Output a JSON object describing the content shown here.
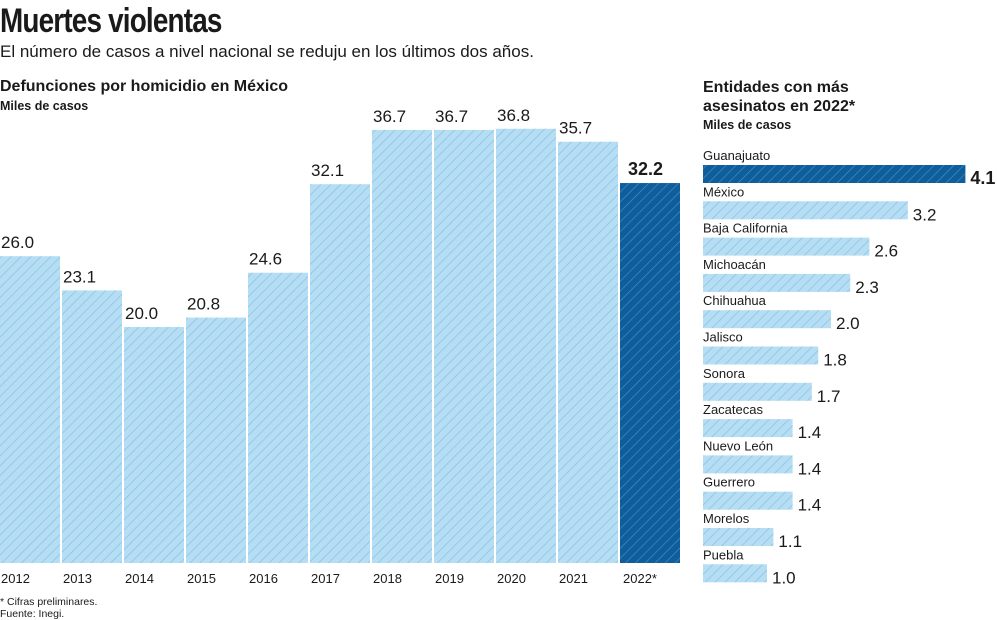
{
  "title": "Muertes violentas",
  "subtitle": "El número de casos a nivel nacional se reduju en los últimos dos años.",
  "footnote": "* Cifras preliminares.",
  "source": "Fuente: Inegi.",
  "colors": {
    "light": "#b5ddf3",
    "light_stripe": "#86bfe0",
    "highlight": "#0f5e9c",
    "highlight_stripe": "#4a8cc4"
  },
  "chart_data": [
    {
      "type": "bar",
      "title": "Defunciones por homicidio en México",
      "ylabel": "Miles de casos",
      "categories": [
        "2012",
        "2013",
        "2014",
        "2015",
        "2016",
        "2017",
        "2018",
        "2019",
        "2020",
        "2021",
        "2022*"
      ],
      "values": [
        26.0,
        23.1,
        20.0,
        20.8,
        24.6,
        32.1,
        36.7,
        36.7,
        36.8,
        35.7,
        32.2
      ],
      "highlight": "2022*",
      "ylim": [
        0,
        40
      ],
      "grid": false
    },
    {
      "type": "bar",
      "orientation": "horizontal",
      "title": "Entidades con más asesinatos en 2022*",
      "xlabel": "Miles de casos",
      "categories": [
        "Guanajuato",
        "México",
        "Baja California",
        "Michoacán",
        "Chihuahua",
        "Jalisco",
        "Sonora",
        "Zacatecas",
        "Nuevo León",
        "Guerrero",
        "Morelos",
        "Puebla"
      ],
      "values": [
        4.1,
        3.2,
        2.6,
        2.3,
        2.0,
        1.8,
        1.7,
        1.4,
        1.4,
        1.4,
        1.1,
        1.0
      ],
      "highlight": "Guanajuato",
      "grid": false
    }
  ]
}
